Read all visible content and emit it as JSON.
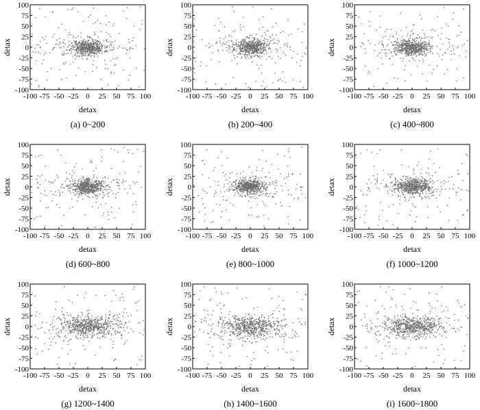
{
  "figure": {
    "panel_width_note": "",
    "dot_color": "#6e6e6e"
  },
  "chart_data": [
    {
      "type": "scatter",
      "caption": "(a) 0~200",
      "xlabel": "detax",
      "ylabel": "detax",
      "xlim": [
        -100,
        100
      ],
      "ylim": [
        -100,
        100
      ],
      "xticks": [
        -100,
        -75,
        -50,
        -25,
        0,
        25,
        50,
        75,
        100
      ],
      "yticks": [
        100,
        75,
        50,
        25,
        0,
        -25,
        -50,
        -75,
        -100
      ],
      "spread": "dense-center",
      "seed": 11
    },
    {
      "type": "scatter",
      "caption": "(b) 200~400",
      "xlabel": "detax",
      "ylabel": "detax",
      "xlim": [
        -100,
        100
      ],
      "ylim": [
        -100,
        100
      ],
      "xticks": [
        -100,
        -75,
        -50,
        -25,
        0,
        25,
        50,
        75,
        100
      ],
      "yticks": [
        100,
        75,
        50,
        25,
        0,
        -25,
        -50,
        -75,
        -100
      ],
      "spread": "dense-center",
      "seed": 23
    },
    {
      "type": "scatter",
      "caption": "(c) 400~800",
      "xlabel": "detax",
      "ylabel": "detax",
      "xlim": [
        -100,
        100
      ],
      "ylim": [
        -100,
        100
      ],
      "xticks": [
        -100,
        -75,
        -50,
        -25,
        0,
        25,
        50,
        75,
        100
      ],
      "yticks": [
        100,
        75,
        50,
        25,
        0,
        -25,
        -50,
        -75,
        -100
      ],
      "spread": "dense-center",
      "seed": 37
    },
    {
      "type": "scatter",
      "caption": "(d) 600~800",
      "xlabel": "detax",
      "ylabel": "detax",
      "xlim": [
        -100,
        100
      ],
      "ylim": [
        -100,
        100
      ],
      "xticks": [
        -100,
        -75,
        -50,
        -25,
        0,
        25,
        50,
        75,
        100
      ],
      "yticks": [
        100,
        75,
        50,
        25,
        0,
        -25,
        -50,
        -75,
        -100
      ],
      "spread": "dense-center",
      "seed": 41
    },
    {
      "type": "scatter",
      "caption": "(e) 800~1000",
      "xlabel": "detax",
      "ylabel": "detax",
      "xlim": [
        -100,
        100
      ],
      "ylim": [
        -100,
        100
      ],
      "xticks": [
        -100,
        -75,
        -50,
        -25,
        0,
        25,
        50,
        75,
        100
      ],
      "yticks": [
        100,
        75,
        50,
        25,
        0,
        -25,
        -50,
        -75,
        -100
      ],
      "spread": "dense-center",
      "seed": 53
    },
    {
      "type": "scatter",
      "caption": "(f) 1000~1200",
      "xlabel": "detax",
      "ylabel": "detax",
      "xlim": [
        -100,
        100
      ],
      "ylim": [
        -100,
        100
      ],
      "xticks": [
        -100,
        -75,
        -50,
        -25,
        0,
        25,
        50,
        75,
        100
      ],
      "yticks": [
        100,
        75,
        50,
        25,
        0,
        -25,
        -50,
        -75,
        -100
      ],
      "spread": "dense-center",
      "seed": 67
    },
    {
      "type": "scatter",
      "caption": "(g) 1200~1400",
      "xlabel": "detax",
      "ylabel": "detax",
      "xlim": [
        -100,
        100
      ],
      "ylim": [
        -100,
        100
      ],
      "xticks": [
        -100,
        -75,
        -50,
        -25,
        0,
        25,
        50,
        75,
        100
      ],
      "yticks": [
        100,
        75,
        50,
        25,
        0,
        -25,
        -50,
        -75,
        -100
      ],
      "spread": "wide",
      "seed": 71
    },
    {
      "type": "scatter",
      "caption": "(h) 1400~1600",
      "xlabel": "detax",
      "ylabel": "detax",
      "xlim": [
        -100,
        100
      ],
      "ylim": [
        -100,
        100
      ],
      "xticks": [
        -100,
        -75,
        -50,
        -25,
        0,
        25,
        50,
        75,
        100
      ],
      "yticks": [
        100,
        75,
        50,
        25,
        0,
        -25,
        -50,
        -75,
        -100
      ],
      "spread": "wide",
      "seed": 83
    },
    {
      "type": "scatter",
      "caption": "(i) 1600~1800",
      "xlabel": "detax",
      "ylabel": "detax",
      "xlim": [
        -100,
        100
      ],
      "ylim": [
        -100,
        100
      ],
      "xticks": [
        -100,
        -75,
        -50,
        -25,
        0,
        25,
        50,
        75,
        100
      ],
      "yticks": [
        100,
        75,
        50,
        25,
        0,
        -25,
        -50,
        -75,
        -100
      ],
      "spread": "wide",
      "seed": 97
    }
  ]
}
